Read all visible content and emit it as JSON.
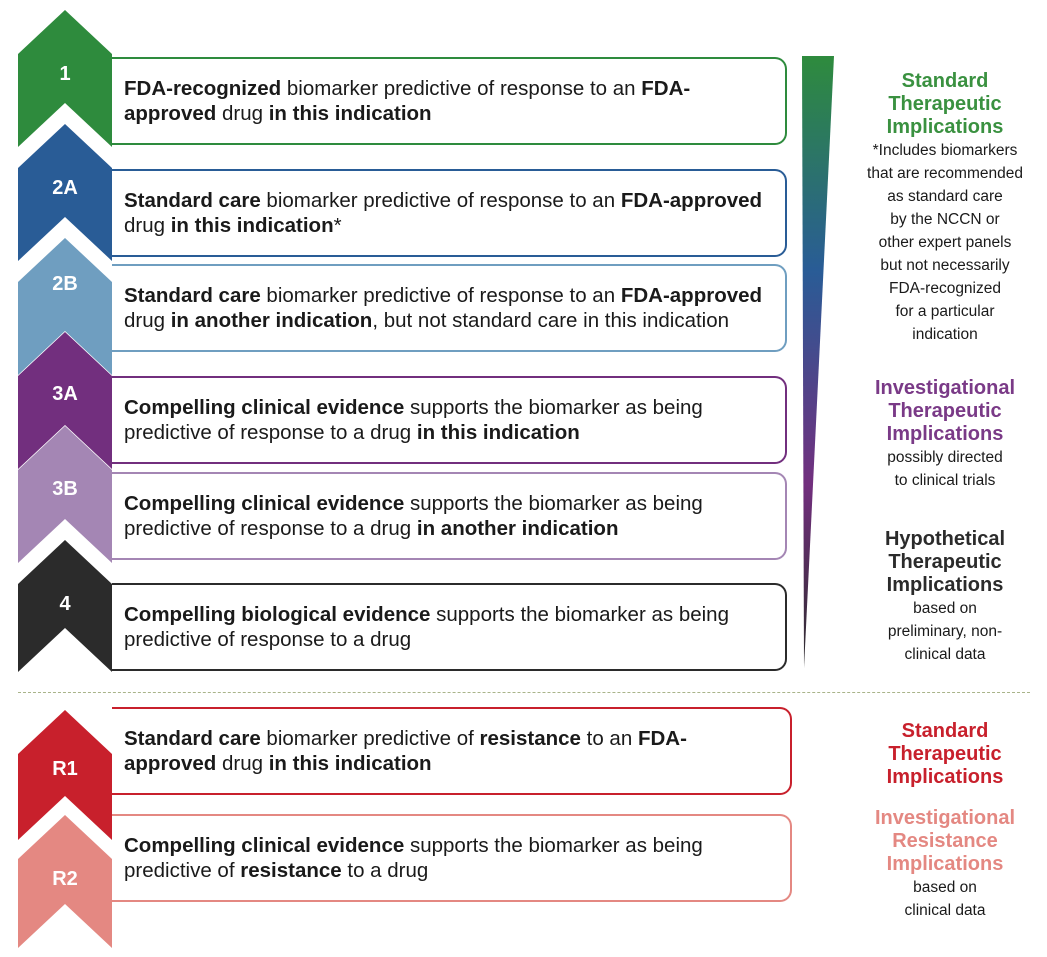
{
  "levels": [
    {
      "label": "1",
      "color": "#2e8b3d",
      "segments": [
        {
          "text": "FDA-recognized",
          "bold": true
        },
        {
          "text": " biomarker predictive of response to an ",
          "bold": false
        },
        {
          "text": "FDA-approved",
          "bold": true
        },
        {
          "text": " drug ",
          "bold": false
        },
        {
          "text": "in this indication",
          "bold": true
        }
      ]
    },
    {
      "label": "2A",
      "color": "#295c96",
      "segments": [
        {
          "text": "Standard care",
          "bold": true
        },
        {
          "text": " biomarker predictive of response to an ",
          "bold": false
        },
        {
          "text": "FDA-approved",
          "bold": true
        },
        {
          "text": " drug ",
          "bold": false
        },
        {
          "text": "in this indication",
          "bold": true
        },
        {
          "text": "*",
          "bold": false
        }
      ]
    },
    {
      "label": "2B",
      "color": "#6f9ec0",
      "segments": [
        {
          "text": "Standard care",
          "bold": true
        },
        {
          "text": " biomarker predictive of response to an ",
          "bold": false
        },
        {
          "text": "FDA-approved",
          "bold": true
        },
        {
          "text": " drug ",
          "bold": false
        },
        {
          "text": "in another indication",
          "bold": true
        },
        {
          "text": ", but not standard care in this indication",
          "bold": false
        }
      ]
    },
    {
      "label": "3A",
      "color": "#722f7e",
      "segments": [
        {
          "text": "Compelling clinical evidence",
          "bold": true
        },
        {
          "text": " supports the biomarker as being predictive of response to a drug ",
          "bold": false
        },
        {
          "text": "in this indication",
          "bold": true
        }
      ]
    },
    {
      "label": "3B",
      "color": "#a486b4",
      "segments": [
        {
          "text": "Compelling clinical evidence",
          "bold": true
        },
        {
          "text": " supports the biomarker as being predictive of response to a drug ",
          "bold": false
        },
        {
          "text": "in another indication",
          "bold": true
        }
      ]
    },
    {
      "label": "4",
      "color": "#2b2b2b",
      "segments": [
        {
          "text": "Compelling biological evidence",
          "bold": true
        },
        {
          "text": " supports the biomarker as being predictive of response to a drug",
          "bold": false
        }
      ]
    },
    {
      "label": "R1",
      "color": "#c8202c",
      "segments": [
        {
          "text": "Standard care",
          "bold": true
        },
        {
          "text": " biomarker predictive of ",
          "bold": false
        },
        {
          "text": "resistance",
          "bold": true
        },
        {
          "text": " to an ",
          "bold": false
        },
        {
          "text": "FDA-approved",
          "bold": true
        },
        {
          "text": " drug ",
          "bold": false
        },
        {
          "text": "in this indication",
          "bold": true
        }
      ]
    },
    {
      "label": "R2",
      "color": "#e48882",
      "segments": [
        {
          "text": "Compelling clinical evidence",
          "bold": true
        },
        {
          "text": " supports the biomarker as being predictive of ",
          "bold": false
        },
        {
          "text": "resistance",
          "bold": true
        },
        {
          "text": " to a drug",
          "bold": false
        }
      ]
    }
  ],
  "side_labels": [
    {
      "heading": [
        "Standard",
        "Therapeutic",
        "Implications"
      ],
      "color": "#3a9140",
      "note": [
        "*Includes biomarkers",
        "that are recommended",
        "as standard care",
        "by the NCCN or",
        "other expert panels",
        "but not necessarily",
        "FDA-recognized",
        "for a particular",
        "indication"
      ]
    },
    {
      "heading": [
        "Investigational",
        "Therapeutic",
        "Implications"
      ],
      "color": "#7a3a87",
      "note": [
        "possibly directed",
        "to clinical trials"
      ]
    },
    {
      "heading": [
        "Hypothetical",
        "Therapeutic",
        "Implications"
      ],
      "color": "#2b2b2b",
      "note": [
        "based on",
        "preliminary, non-",
        "clinical data"
      ]
    },
    {
      "heading": [
        "Standard",
        "Therapeutic",
        "Implications"
      ],
      "color": "#c8202c",
      "note": []
    },
    {
      "heading": [
        "Investigational",
        "Resistance",
        "Implications"
      ],
      "color": "#e48882",
      "note": [
        "based on",
        "clinical data"
      ]
    }
  ],
  "wedge_colors": [
    "#2e8b3d",
    "#295c96",
    "#722f7e",
    "#2b2b2b"
  ]
}
